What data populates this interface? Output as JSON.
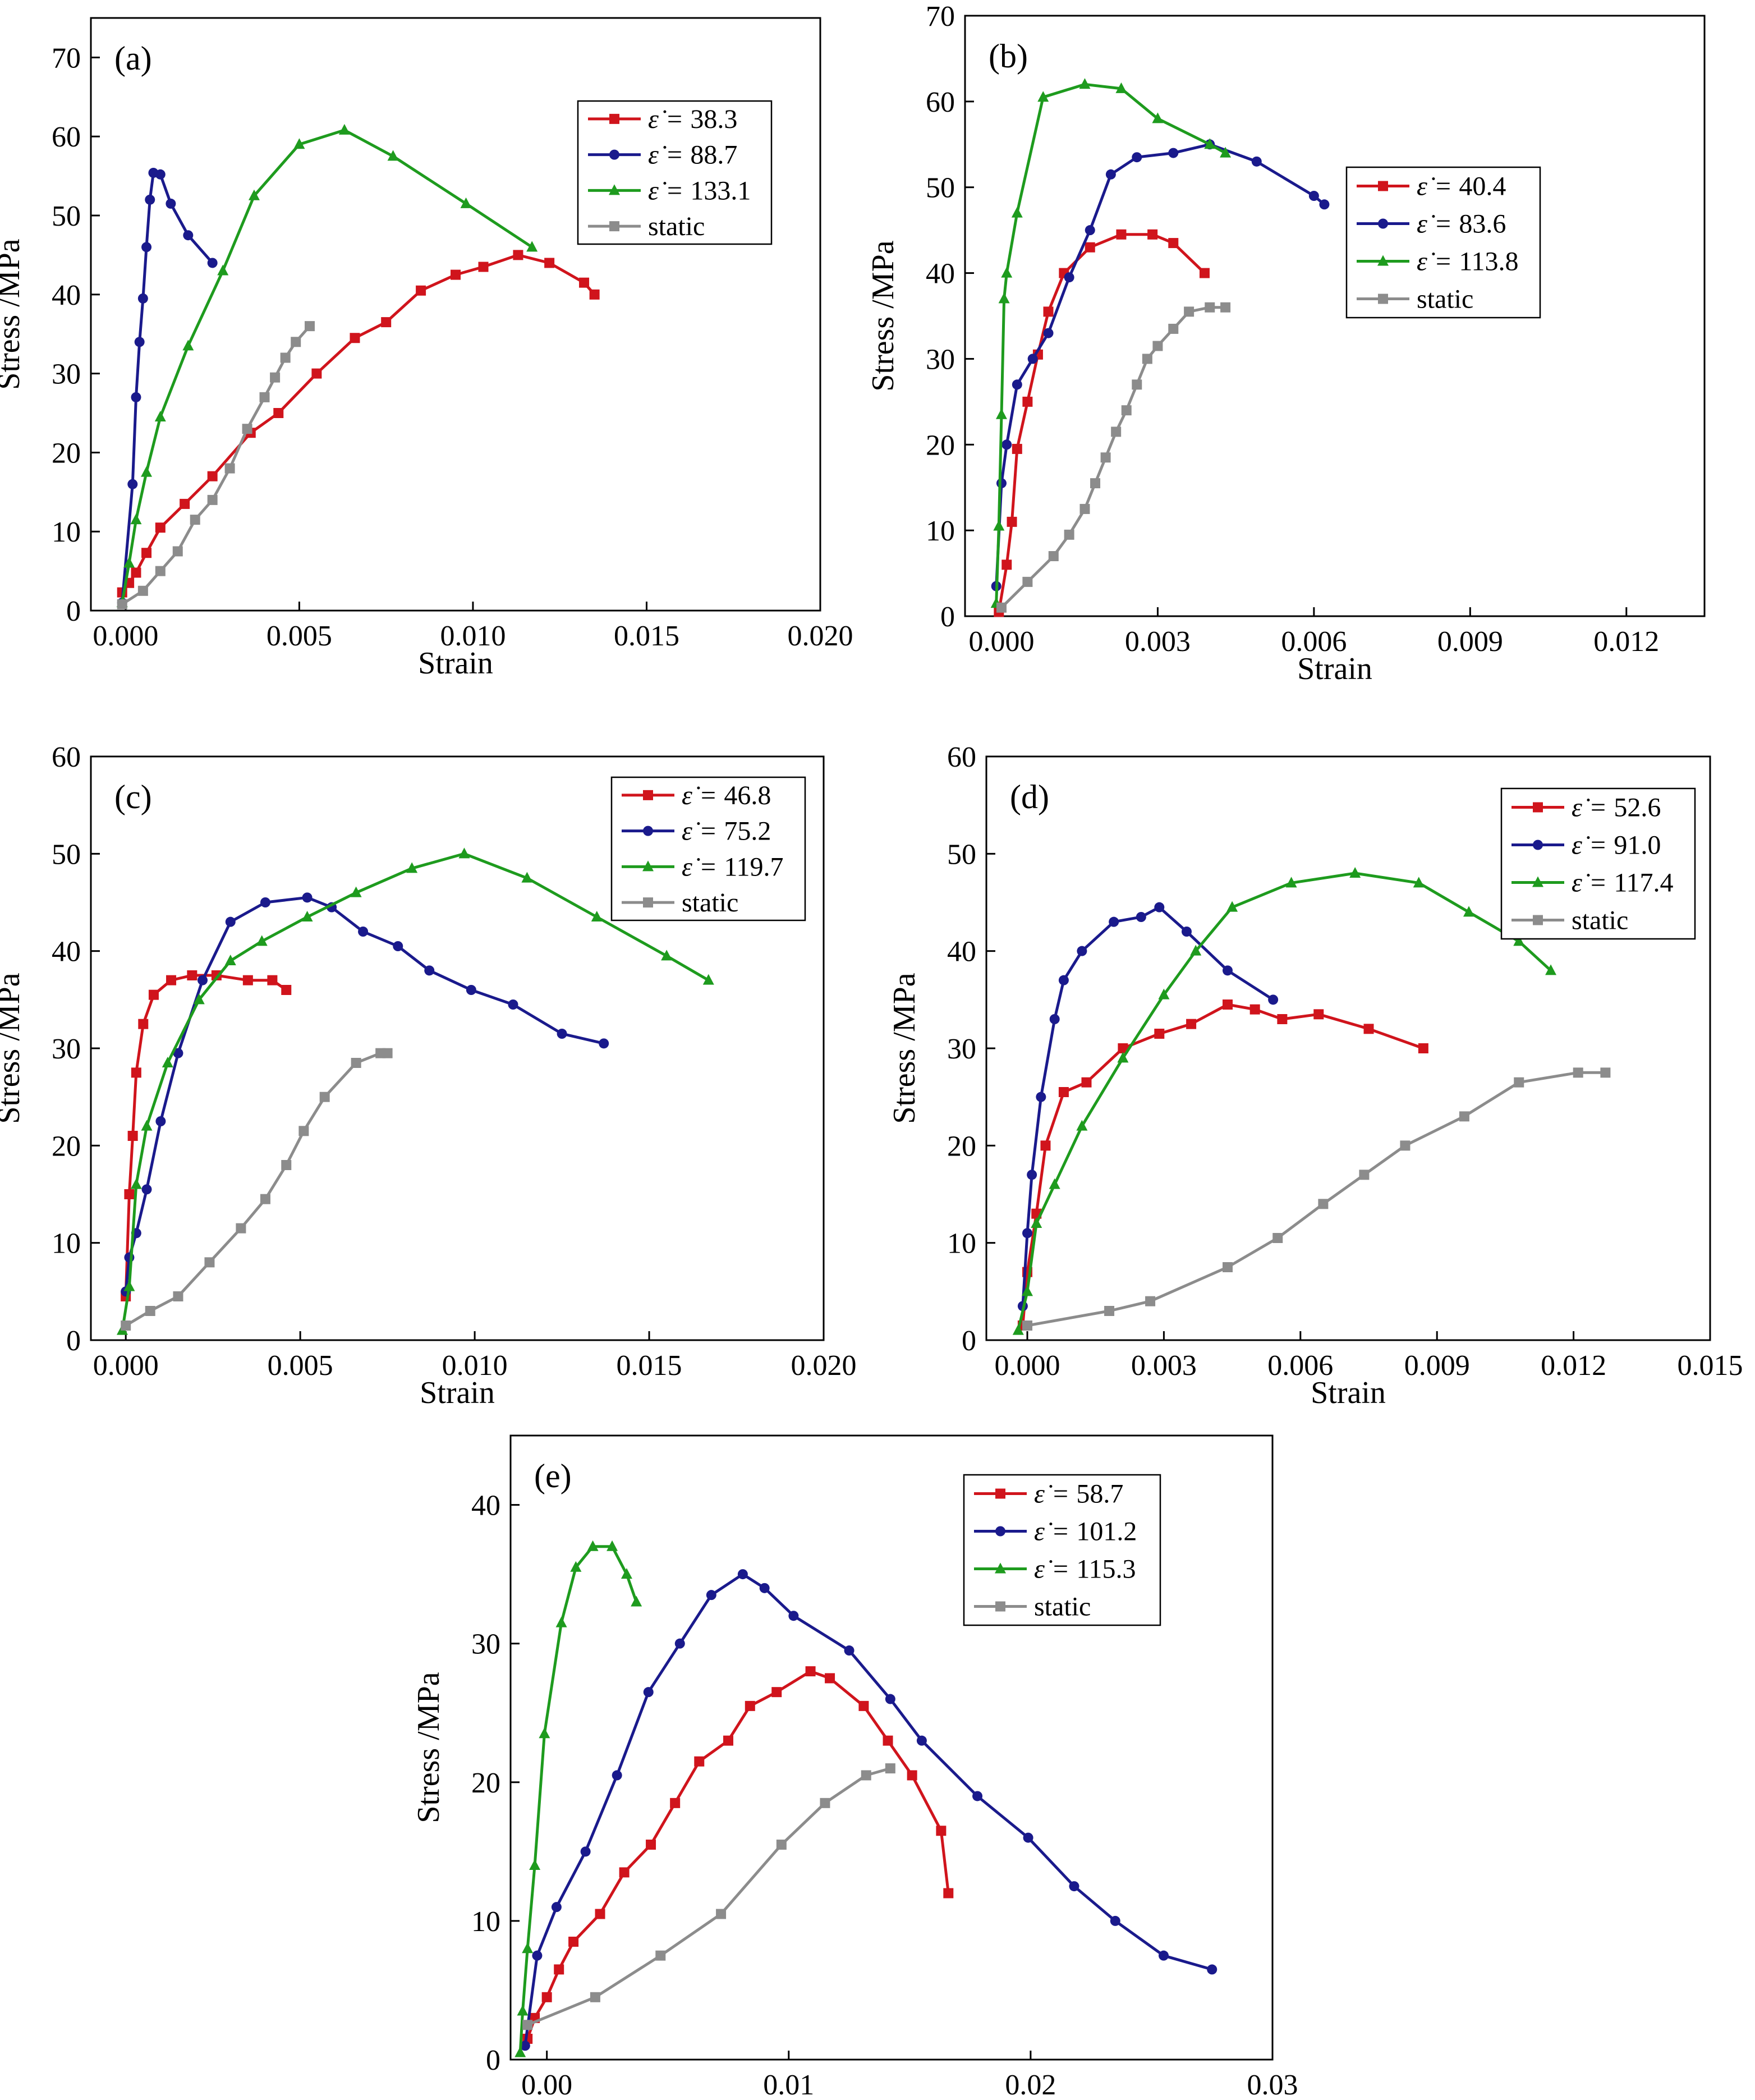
{
  "figure": {
    "panels": [
      "a",
      "b",
      "c",
      "d",
      "e"
    ]
  },
  "colors": {
    "red": "#d0141c",
    "blue": "#1a1a8c",
    "green": "#1e9b1e",
    "gray": "#8c8c8c"
  },
  "legend_symbol": "ε̇ =",
  "chart_data": [
    {
      "type": "line",
      "panel_label": "(a)",
      "xlabel": "Strain",
      "ylabel": "Stress /MPa",
      "xlim": [
        -0.001,
        0.02
      ],
      "ylim": [
        0,
        75
      ],
      "xticks": [
        0.0,
        0.005,
        0.01,
        0.015,
        0.02
      ],
      "xtick_labels": [
        "0.000",
        "0.005",
        "0.010",
        "0.015",
        "0.020"
      ],
      "yticks": [
        0,
        10,
        20,
        30,
        40,
        50,
        60,
        70
      ],
      "ytick_labels": [
        "0",
        "10",
        "20",
        "30",
        "40",
        "50",
        "60",
        "70"
      ],
      "legend_location": "top-right",
      "series": [
        {
          "name": "38.3",
          "color": "red",
          "marker": "square",
          "x": [
            -0.0001,
            0.0001,
            0.0003,
            0.0006,
            0.001,
            0.0017,
            0.0025,
            0.0036,
            0.0044,
            0.0055,
            0.0066,
            0.0075,
            0.0085,
            0.0095,
            0.0103,
            0.0113,
            0.0122,
            0.0132,
            0.0135
          ],
          "y": [
            2.3,
            3.5,
            4.8,
            7.3,
            10.5,
            13.5,
            17,
            22.5,
            25,
            30,
            34.5,
            36.5,
            40.5,
            42.5,
            43.5,
            45,
            44,
            41.5,
            40
          ]
        },
        {
          "name": "88.7",
          "color": "blue",
          "marker": "circle",
          "x": [
            -0.0001,
            0.0002,
            0.0003,
            0.0004,
            0.0005,
            0.0006,
            0.0007,
            0.0008,
            0.001,
            0.0013,
            0.0018,
            0.0025
          ],
          "y": [
            1,
            16,
            27,
            34,
            39.5,
            46,
            52,
            55.4,
            55.2,
            51.5,
            47.5,
            44
          ]
        },
        {
          "name": "133.1",
          "color": "green",
          "marker": "triangle",
          "x": [
            -0.0001,
            0.0001,
            0.0003,
            0.0006,
            0.001,
            0.0018,
            0.0028,
            0.0037,
            0.005,
            0.0063,
            0.0077,
            0.0098,
            0.0117
          ],
          "y": [
            1,
            6,
            11.5,
            17.5,
            24.5,
            33.5,
            43,
            52.5,
            59,
            60.8,
            57.5,
            51.5,
            46
          ]
        },
        {
          "name": "static",
          "color": "gray",
          "marker": "square",
          "x": [
            -0.0001,
            0.0005,
            0.001,
            0.0015,
            0.002,
            0.0025,
            0.003,
            0.0035,
            0.004,
            0.0043,
            0.0046,
            0.0049,
            0.0053
          ],
          "y": [
            0.8,
            2.5,
            5,
            7.5,
            11.5,
            14,
            18,
            23,
            27,
            29.5,
            32,
            34,
            36
          ]
        }
      ]
    },
    {
      "type": "line",
      "panel_label": "(b)",
      "xlabel": "Strain",
      "ylabel": "Stress /MPa",
      "xlim": [
        -0.0007,
        0.0135
      ],
      "ylim": [
        0,
        70
      ],
      "xticks": [
        0.0,
        0.003,
        0.006,
        0.009,
        0.012
      ],
      "xtick_labels": [
        "0.000",
        "0.003",
        "0.006",
        "0.009",
        "0.012"
      ],
      "yticks": [
        0,
        10,
        20,
        30,
        40,
        50,
        60,
        70
      ],
      "ytick_labels": [
        "0",
        "10",
        "20",
        "30",
        "40",
        "50",
        "60",
        "70"
      ],
      "legend_location": "center-right",
      "series": [
        {
          "name": "40.4",
          "color": "red",
          "marker": "square",
          "x": [
            -5e-05,
            0.0001,
            0.0002,
            0.0003,
            0.0005,
            0.0007,
            0.0009,
            0.0012,
            0.0017,
            0.0023,
            0.0029,
            0.0033,
            0.0039
          ],
          "y": [
            0.5,
            6,
            11,
            19.5,
            25,
            30.5,
            35.5,
            40,
            43,
            44.5,
            44.5,
            43.5,
            40
          ]
        },
        {
          "name": "83.6",
          "color": "blue",
          "marker": "circle",
          "x": [
            -0.0001,
            0.0,
            0.0001,
            0.0003,
            0.0006,
            0.0009,
            0.0013,
            0.0017,
            0.0021,
            0.0026,
            0.0033,
            0.004,
            0.0049,
            0.006,
            0.0062
          ],
          "y": [
            3.5,
            15.5,
            20,
            27,
            30,
            33,
            39.5,
            45,
            51.5,
            53.5,
            54,
            55,
            53,
            49,
            48
          ]
        },
        {
          "name": "113.8",
          "color": "green",
          "marker": "triangle",
          "x": [
            -0.0001,
            -5e-05,
            0.0,
            5e-05,
            0.0001,
            0.0003,
            0.0008,
            0.0016,
            0.0023,
            0.003,
            0.004,
            0.0043
          ],
          "y": [
            1.5,
            10.5,
            23.5,
            37,
            40,
            47,
            60.5,
            62,
            61.5,
            58,
            55,
            54
          ]
        },
        {
          "name": "static",
          "color": "gray",
          "marker": "square",
          "x": [
            0.0,
            0.0005,
            0.001,
            0.0013,
            0.0016,
            0.0018,
            0.002,
            0.0022,
            0.0024,
            0.0026,
            0.0028,
            0.003,
            0.0033,
            0.0036,
            0.004,
            0.0043
          ],
          "y": [
            1,
            4,
            7,
            9.5,
            12.5,
            15.5,
            18.5,
            21.5,
            24,
            27,
            30,
            31.5,
            33.5,
            35.5,
            36,
            36
          ]
        }
      ]
    },
    {
      "type": "line",
      "panel_label": "(c)",
      "xlabel": "Strain",
      "ylabel": "Stress /MPa",
      "xlim": [
        -0.001,
        0.02
      ],
      "ylim": [
        0,
        60
      ],
      "xticks": [
        0.0,
        0.005,
        0.01,
        0.015,
        0.02
      ],
      "xtick_labels": [
        "0.000",
        "0.005",
        "0.010",
        "0.015",
        "0.020"
      ],
      "yticks": [
        0,
        10,
        20,
        30,
        40,
        50,
        60
      ],
      "ytick_labels": [
        "0",
        "10",
        "20",
        "30",
        "40",
        "50",
        "60"
      ],
      "legend_location": "top-right",
      "series": [
        {
          "name": "46.8",
          "color": "red",
          "marker": "square",
          "x": [
            0.0,
            0.0001,
            0.0002,
            0.0003,
            0.0005,
            0.0008,
            0.0013,
            0.0019,
            0.0026,
            0.0035,
            0.0042,
            0.0046
          ],
          "y": [
            4.5,
            15,
            21,
            27.5,
            32.5,
            35.5,
            37,
            37.5,
            37.5,
            37,
            37,
            36
          ]
        },
        {
          "name": "75.2",
          "color": "blue",
          "marker": "circle",
          "x": [
            0.0,
            0.0001,
            0.0003,
            0.0006,
            0.001,
            0.0015,
            0.0022,
            0.003,
            0.004,
            0.0052,
            0.0059,
            0.0068,
            0.0078,
            0.0087,
            0.0099,
            0.0111,
            0.0125,
            0.0137
          ],
          "y": [
            5,
            8.5,
            11,
            15.5,
            22.5,
            29.5,
            37,
            43,
            45,
            45.5,
            44.5,
            42,
            40.5,
            38,
            36,
            34.5,
            31.5,
            30.5
          ]
        },
        {
          "name": "119.7",
          "color": "green",
          "marker": "triangle",
          "x": [
            -0.0001,
            0.0001,
            0.0003,
            0.0006,
            0.0012,
            0.0021,
            0.003,
            0.0039,
            0.0052,
            0.0066,
            0.0082,
            0.0097,
            0.0115,
            0.0135,
            0.0155,
            0.0167
          ],
          "y": [
            1,
            5.5,
            16,
            22,
            28.5,
            35,
            39,
            41,
            43.5,
            46,
            48.5,
            50,
            47.5,
            43.5,
            39.5,
            37
          ]
        },
        {
          "name": "static",
          "color": "gray",
          "marker": "square",
          "x": [
            0.0,
            0.0007,
            0.0015,
            0.0024,
            0.0033,
            0.004,
            0.0046,
            0.0051,
            0.0057,
            0.0066,
            0.0073,
            0.0075
          ],
          "y": [
            1.5,
            3,
            4.5,
            8,
            11.5,
            14.5,
            18,
            21.5,
            25,
            28.5,
            29.5,
            29.5
          ]
        }
      ]
    },
    {
      "type": "line",
      "panel_label": "(d)",
      "xlabel": "Strain",
      "ylabel": "Stress /MPa",
      "xlim": [
        -0.0009,
        0.015
      ],
      "ylim": [
        0,
        60
      ],
      "xticks": [
        0.0,
        0.003,
        0.006,
        0.009,
        0.012,
        0.015
      ],
      "xtick_labels": [
        "0.000",
        "0.003",
        "0.006",
        "0.009",
        "0.012",
        "0.015"
      ],
      "yticks": [
        0,
        10,
        20,
        30,
        40,
        50,
        60
      ],
      "ytick_labels": [
        "0",
        "10",
        "20",
        "30",
        "40",
        "50",
        "60"
      ],
      "legend_location": "top-right",
      "series": [
        {
          "name": "52.6",
          "color": "red",
          "marker": "square",
          "x": [
            -0.0001,
            0.0,
            0.0002,
            0.0004,
            0.0008,
            0.0013,
            0.0021,
            0.0029,
            0.0036,
            0.0044,
            0.005,
            0.0056,
            0.0064,
            0.0075,
            0.0087
          ],
          "y": [
            1.5,
            7,
            13,
            20,
            25.5,
            26.5,
            30,
            31.5,
            32.5,
            34.5,
            34,
            33,
            33.5,
            32,
            30
          ]
        },
        {
          "name": "91.0",
          "color": "blue",
          "marker": "circle",
          "x": [
            -0.0001,
            0.0,
            0.0001,
            0.0003,
            0.0006,
            0.0008,
            0.0012,
            0.0019,
            0.0025,
            0.0029,
            0.0035,
            0.0044,
            0.0054
          ],
          "y": [
            3.5,
            11,
            17,
            25,
            33,
            37,
            40,
            43,
            43.5,
            44.5,
            42,
            38,
            35
          ]
        },
        {
          "name": "117.4",
          "color": "green",
          "marker": "triangle",
          "x": [
            -0.0002,
            0.0,
            0.0002,
            0.0006,
            0.0012,
            0.0021,
            0.003,
            0.0037,
            0.0045,
            0.0058,
            0.0072,
            0.0086,
            0.0097,
            0.0108,
            0.0115
          ],
          "y": [
            1,
            5,
            12,
            16,
            22,
            29,
            35.5,
            40,
            44.5,
            47,
            48,
            47,
            44,
            41,
            38
          ]
        },
        {
          "name": "static",
          "color": "gray",
          "marker": "square",
          "x": [
            0.0,
            0.0018,
            0.0027,
            0.0044,
            0.0055,
            0.0065,
            0.0074,
            0.0083,
            0.0096,
            0.0108,
            0.0121,
            0.0127
          ],
          "y": [
            1.5,
            3,
            4,
            7.5,
            10.5,
            14,
            17,
            20,
            23,
            26.5,
            27.5,
            27.5
          ]
        }
      ]
    },
    {
      "type": "line",
      "panel_label": "(e)",
      "xlabel": "Strain",
      "ylabel": "Stress /MPa",
      "xlim": [
        -0.0015,
        0.03
      ],
      "ylim": [
        0,
        45
      ],
      "xticks": [
        0.0,
        0.01,
        0.02,
        0.03
      ],
      "xtick_labels": [
        "0.00",
        "0.01",
        "0.02",
        "0.03"
      ],
      "yticks": [
        0,
        10,
        20,
        30,
        40
      ],
      "ytick_labels": [
        "0",
        "10",
        "20",
        "30",
        "40"
      ],
      "legend_location": "top-right",
      "series": [
        {
          "name": "58.7",
          "color": "red",
          "marker": "square",
          "x": [
            -0.0008,
            -0.0005,
            0.0,
            0.0005,
            0.0011,
            0.0022,
            0.0032,
            0.0043,
            0.0053,
            0.0063,
            0.0075,
            0.0084,
            0.0095,
            0.0109,
            0.0117,
            0.0131,
            0.0141,
            0.0151,
            0.0163,
            0.0166
          ],
          "y": [
            1.5,
            3,
            4.5,
            6.5,
            8.5,
            10.5,
            13.5,
            15.5,
            18.5,
            21.5,
            23,
            25.5,
            26.5,
            28,
            27.5,
            25.5,
            23,
            20.5,
            16.5,
            12
          ]
        },
        {
          "name": "101.2",
          "color": "blue",
          "marker": "circle",
          "x": [
            -0.0009,
            -0.0004,
            0.0004,
            0.0016,
            0.0029,
            0.0042,
            0.0055,
            0.0068,
            0.0081,
            0.009,
            0.0102,
            0.0125,
            0.0142,
            0.0155,
            0.0178,
            0.0199,
            0.0218,
            0.0235,
            0.0255,
            0.0275
          ],
          "y": [
            1,
            7.5,
            11,
            15,
            20.5,
            26.5,
            30,
            33.5,
            35,
            34,
            32,
            29.5,
            26,
            23,
            19,
            16,
            12.5,
            10,
            7.5,
            6.5
          ]
        },
        {
          "name": "115.3",
          "color": "green",
          "marker": "triangle",
          "x": [
            -0.0011,
            -0.001,
            -0.0008,
            -0.0005,
            -0.0001,
            0.0006,
            0.0012,
            0.0019,
            0.0027,
            0.0033,
            0.0037
          ],
          "y": [
            0.5,
            3.5,
            8,
            14,
            23.5,
            31.5,
            35.5,
            37,
            37,
            35,
            33
          ]
        },
        {
          "name": "static",
          "color": "gray",
          "marker": "square",
          "x": [
            -0.0008,
            0.002,
            0.0047,
            0.0072,
            0.0097,
            0.0115,
            0.0132,
            0.0142
          ],
          "y": [
            2.5,
            4.5,
            7.5,
            10.5,
            15.5,
            18.5,
            20.5,
            21
          ]
        }
      ]
    }
  ]
}
